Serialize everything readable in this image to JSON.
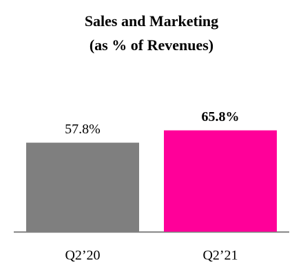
{
  "chart_data": {
    "type": "bar",
    "title": [
      "Sales and Marketing",
      "(as % of Revenues)"
    ],
    "categories": [
      "Q2’20",
      "Q2’21"
    ],
    "values": [
      57.8,
      65.8
    ],
    "value_labels": [
      "57.8%",
      "65.8%"
    ],
    "value_label_bold": [
      false,
      true
    ],
    "colors": [
      "#7f7f7f",
      "#ff0099"
    ]
  }
}
